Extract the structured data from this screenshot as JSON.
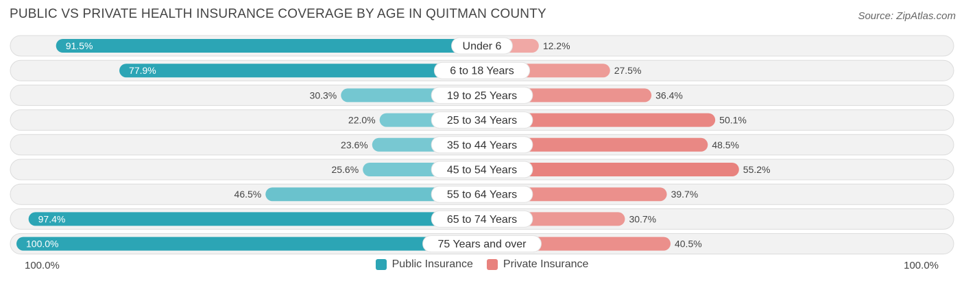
{
  "chart_data": {
    "type": "bar",
    "title": "PUBLIC VS PRIVATE HEALTH INSURANCE COVERAGE BY AGE IN QUITMAN COUNTY",
    "source": "Source: ZipAtlas.com",
    "categories": [
      "Under 6",
      "6 to 18 Years",
      "19 to 25 Years",
      "25 to 34 Years",
      "35 to 44 Years",
      "45 to 54 Years",
      "55 to 64 Years",
      "65 to 74 Years",
      "75 Years and over"
    ],
    "series": [
      {
        "name": "Public Insurance",
        "color": "#2ca5b5",
        "color_light": "#86cfd8",
        "values": [
          91.5,
          77.9,
          30.3,
          22.0,
          23.6,
          25.6,
          46.5,
          97.4,
          100.0
        ],
        "labels": [
          "91.5%",
          "77.9%",
          "30.3%",
          "22.0%",
          "23.6%",
          "25.6%",
          "46.5%",
          "97.4%",
          "100.0%"
        ]
      },
      {
        "name": "Private Insurance",
        "color": "#e8827e",
        "color_light": "#f2b3b0",
        "values": [
          12.2,
          27.5,
          36.4,
          50.1,
          48.5,
          55.2,
          39.7,
          30.7,
          40.5
        ],
        "labels": [
          "12.2%",
          "27.5%",
          "36.4%",
          "50.1%",
          "48.5%",
          "55.2%",
          "39.7%",
          "30.7%",
          "40.5%"
        ]
      }
    ],
    "xlim": [
      -100,
      100
    ],
    "axis_left_label": "100.0%",
    "axis_right_label": "100.0%",
    "legend_position": "bottom-center"
  }
}
